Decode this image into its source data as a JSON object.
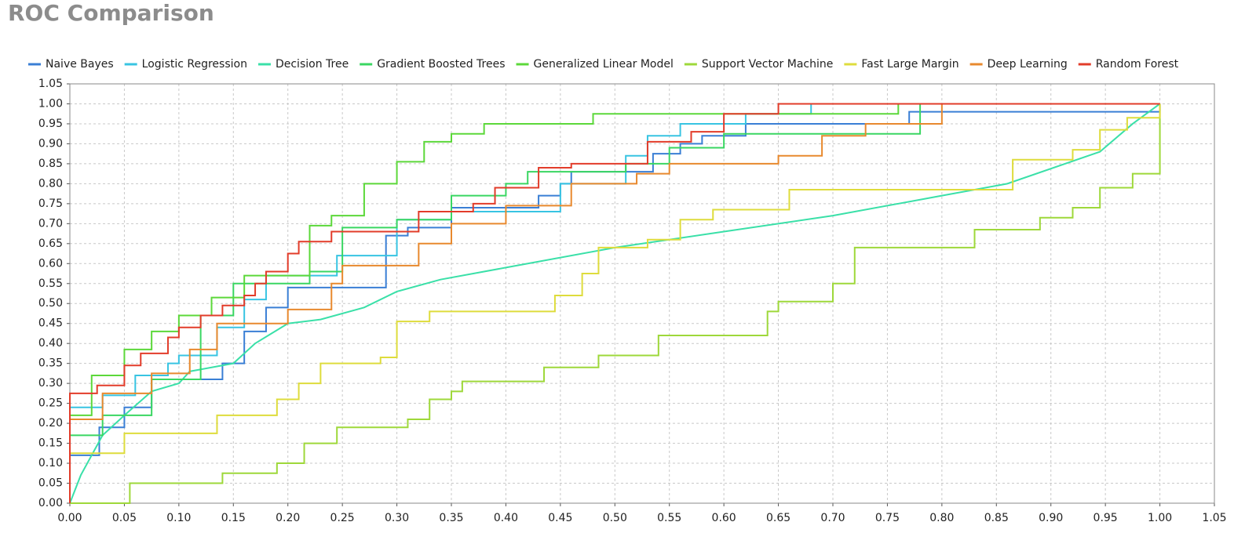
{
  "chart_data": {
    "type": "line",
    "title": "ROC Comparison",
    "xlim": [
      0,
      1.05
    ],
    "ylim": [
      0,
      1.05
    ],
    "grid": true,
    "legend": "top",
    "xticks": [
      {
        "value": 0,
        "label": "0.00"
      },
      {
        "value": 0.05,
        "label": "0.05"
      },
      {
        "value": 0.1,
        "label": "0.10"
      },
      {
        "value": 0.15,
        "label": "0.15"
      },
      {
        "value": 0.2,
        "label": "0.20"
      },
      {
        "value": 0.25,
        "label": "0.25"
      },
      {
        "value": 0.3,
        "label": "0.30"
      },
      {
        "value": 0.35,
        "label": "0.35"
      },
      {
        "value": 0.4,
        "label": "0.40"
      },
      {
        "value": 0.45,
        "label": "0.45"
      },
      {
        "value": 0.5,
        "label": "0.50"
      },
      {
        "value": 0.55,
        "label": "0.55"
      },
      {
        "value": 0.6,
        "label": "0.60"
      },
      {
        "value": 0.65,
        "label": "0.65"
      },
      {
        "value": 0.7,
        "label": "0.70"
      },
      {
        "value": 0.75,
        "label": "0.75"
      },
      {
        "value": 0.8,
        "label": "0.80"
      },
      {
        "value": 0.85,
        "label": "0.85"
      },
      {
        "value": 0.9,
        "label": "0.90"
      },
      {
        "value": 0.95,
        "label": "0.95"
      },
      {
        "value": 1,
        "label": "1.00"
      },
      {
        "value": 1.05,
        "label": "1.05"
      }
    ],
    "yticks": [
      {
        "value": 0,
        "label": "0.00"
      },
      {
        "value": 0.05,
        "label": "0.05"
      },
      {
        "value": 0.1,
        "label": "0.10"
      },
      {
        "value": 0.15,
        "label": "0.15"
      },
      {
        "value": 0.2,
        "label": "0.20"
      },
      {
        "value": 0.25,
        "label": "0.25"
      },
      {
        "value": 0.3,
        "label": "0.30"
      },
      {
        "value": 0.35,
        "label": "0.35"
      },
      {
        "value": 0.4,
        "label": "0.40"
      },
      {
        "value": 0.45,
        "label": "0.45"
      },
      {
        "value": 0.5,
        "label": "0.50"
      },
      {
        "value": 0.55,
        "label": "0.55"
      },
      {
        "value": 0.6,
        "label": "0.60"
      },
      {
        "value": 0.65,
        "label": "0.65"
      },
      {
        "value": 0.7,
        "label": "0.70"
      },
      {
        "value": 0.75,
        "label": "0.75"
      },
      {
        "value": 0.8,
        "label": "0.80"
      },
      {
        "value": 0.85,
        "label": "0.85"
      },
      {
        "value": 0.9,
        "label": "0.90"
      },
      {
        "value": 0.95,
        "label": "0.95"
      },
      {
        "value": 1,
        "label": "1.00"
      },
      {
        "value": 1.05,
        "label": "1.05"
      }
    ],
    "series": [
      {
        "name": "Naive Bayes",
        "color": "#3a7fd5",
        "x": [
          0,
          0,
          0.027,
          0.027,
          0.05,
          0.05,
          0.075,
          0.075,
          0.14,
          0.14,
          0.16,
          0.16,
          0.18,
          0.18,
          0.2,
          0.2,
          0.29,
          0.29,
          0.31,
          0.31,
          0.35,
          0.35,
          0.43,
          0.43,
          0.45,
          0.45,
          0.46,
          0.46,
          0.535,
          0.535,
          0.56,
          0.56,
          0.58,
          0.58,
          0.62,
          0.62,
          0.77,
          0.77,
          1.0,
          1.0
        ],
        "values": [
          0,
          0.12,
          0.12,
          0.19,
          0.19,
          0.24,
          0.24,
          0.31,
          0.31,
          0.35,
          0.35,
          0.43,
          0.43,
          0.49,
          0.49,
          0.54,
          0.54,
          0.67,
          0.67,
          0.69,
          0.69,
          0.74,
          0.74,
          0.77,
          0.77,
          0.8,
          0.8,
          0.83,
          0.83,
          0.875,
          0.875,
          0.9,
          0.9,
          0.92,
          0.92,
          0.95,
          0.95,
          0.98,
          0.98,
          1.0
        ]
      },
      {
        "name": "Logistic Regression",
        "color": "#38c4e2",
        "x": [
          0,
          0,
          0.03,
          0.03,
          0.06,
          0.06,
          0.09,
          0.09,
          0.1,
          0.1,
          0.135,
          0.135,
          0.16,
          0.16,
          0.18,
          0.18,
          0.245,
          0.245,
          0.3,
          0.3,
          0.35,
          0.35,
          0.45,
          0.45,
          0.51,
          0.51,
          0.53,
          0.53,
          0.56,
          0.56,
          0.62,
          0.62,
          0.68,
          0.68,
          1.0
        ],
        "values": [
          0,
          0.24,
          0.24,
          0.27,
          0.27,
          0.32,
          0.32,
          0.35,
          0.35,
          0.37,
          0.37,
          0.44,
          0.44,
          0.51,
          0.51,
          0.57,
          0.57,
          0.62,
          0.62,
          0.71,
          0.71,
          0.73,
          0.73,
          0.8,
          0.8,
          0.87,
          0.87,
          0.92,
          0.92,
          0.95,
          0.95,
          0.975,
          0.975,
          1.0,
          1.0
        ]
      },
      {
        "name": "Decision Tree",
        "color": "#3ae0a8",
        "x": [
          0,
          0.01,
          0.03,
          0.05,
          0.075,
          0.1,
          0.11,
          0.15,
          0.17,
          0.2,
          0.23,
          0.27,
          0.3,
          0.34,
          0.4,
          0.5,
          0.6,
          0.7,
          0.8,
          0.86,
          0.945,
          0.975,
          1.0
        ],
        "values": [
          0,
          0.07,
          0.17,
          0.22,
          0.28,
          0.3,
          0.33,
          0.35,
          0.4,
          0.45,
          0.46,
          0.49,
          0.53,
          0.56,
          0.59,
          0.64,
          0.68,
          0.72,
          0.77,
          0.8,
          0.88,
          0.95,
          1.0
        ]
      },
      {
        "name": "Gradient Boosted Trees",
        "color": "#3ad662",
        "x": [
          0,
          0,
          0.03,
          0.03,
          0.075,
          0.075,
          0.12,
          0.12,
          0.15,
          0.15,
          0.22,
          0.22,
          0.25,
          0.25,
          0.3,
          0.3,
          0.35,
          0.35,
          0.4,
          0.4,
          0.42,
          0.42,
          0.51,
          0.51,
          0.55,
          0.55,
          0.6,
          0.6,
          0.78,
          0.78,
          1.0
        ],
        "values": [
          0,
          0.17,
          0.17,
          0.22,
          0.22,
          0.31,
          0.31,
          0.47,
          0.47,
          0.55,
          0.55,
          0.58,
          0.58,
          0.69,
          0.69,
          0.71,
          0.71,
          0.77,
          0.77,
          0.8,
          0.8,
          0.83,
          0.83,
          0.85,
          0.85,
          0.89,
          0.89,
          0.925,
          0.925,
          1.0,
          1.0
        ]
      },
      {
        "name": "Generalized Linear Model",
        "color": "#5cd83a",
        "x": [
          0,
          0,
          0.02,
          0.02,
          0.05,
          0.05,
          0.075,
          0.075,
          0.1,
          0.1,
          0.13,
          0.13,
          0.16,
          0.16,
          0.22,
          0.22,
          0.24,
          0.24,
          0.27,
          0.27,
          0.3,
          0.3,
          0.325,
          0.325,
          0.35,
          0.35,
          0.38,
          0.38,
          0.48,
          0.48,
          0.76,
          0.76,
          1.0
        ],
        "values": [
          0,
          0.22,
          0.22,
          0.32,
          0.32,
          0.385,
          0.385,
          0.43,
          0.43,
          0.47,
          0.47,
          0.515,
          0.515,
          0.57,
          0.57,
          0.695,
          0.695,
          0.72,
          0.72,
          0.8,
          0.8,
          0.855,
          0.855,
          0.905,
          0.905,
          0.925,
          0.925,
          0.95,
          0.95,
          0.975,
          0.975,
          1.0,
          1.0
        ]
      },
      {
        "name": "Support Vector Machine",
        "color": "#9ed83a",
        "x": [
          0,
          0.055,
          0.055,
          0.14,
          0.14,
          0.19,
          0.19,
          0.215,
          0.215,
          0.245,
          0.245,
          0.31,
          0.31,
          0.33,
          0.33,
          0.35,
          0.35,
          0.36,
          0.36,
          0.435,
          0.435,
          0.485,
          0.485,
          0.54,
          0.54,
          0.64,
          0.64,
          0.65,
          0.65,
          0.7,
          0.7,
          0.72,
          0.72,
          0.83,
          0.83,
          0.89,
          0.89,
          0.92,
          0.92,
          0.945,
          0.945,
          0.975,
          0.975,
          1.0,
          1.0
        ],
        "values": [
          0,
          0,
          0.05,
          0.05,
          0.075,
          0.075,
          0.1,
          0.1,
          0.15,
          0.15,
          0.19,
          0.19,
          0.21,
          0.21,
          0.26,
          0.26,
          0.28,
          0.28,
          0.305,
          0.305,
          0.34,
          0.34,
          0.37,
          0.37,
          0.42,
          0.42,
          0.48,
          0.48,
          0.505,
          0.505,
          0.55,
          0.55,
          0.64,
          0.64,
          0.685,
          0.685,
          0.715,
          0.715,
          0.74,
          0.74,
          0.79,
          0.79,
          0.825,
          0.825,
          1.0
        ]
      },
      {
        "name": "Fast Large Margin",
        "color": "#dedc3c",
        "x": [
          0,
          0,
          0.05,
          0.05,
          0.135,
          0.135,
          0.19,
          0.19,
          0.21,
          0.21,
          0.23,
          0.23,
          0.285,
          0.285,
          0.3,
          0.3,
          0.33,
          0.33,
          0.445,
          0.445,
          0.47,
          0.47,
          0.485,
          0.485,
          0.53,
          0.53,
          0.56,
          0.56,
          0.59,
          0.59,
          0.66,
          0.66,
          0.865,
          0.865,
          0.92,
          0.92,
          0.945,
          0.945,
          0.97,
          0.97,
          1.0,
          1.0
        ],
        "values": [
          0,
          0.125,
          0.125,
          0.175,
          0.175,
          0.22,
          0.22,
          0.26,
          0.26,
          0.3,
          0.3,
          0.35,
          0.35,
          0.365,
          0.365,
          0.455,
          0.455,
          0.48,
          0.48,
          0.52,
          0.52,
          0.575,
          0.575,
          0.64,
          0.64,
          0.66,
          0.66,
          0.71,
          0.71,
          0.735,
          0.735,
          0.785,
          0.785,
          0.86,
          0.86,
          0.885,
          0.885,
          0.935,
          0.935,
          0.965,
          0.965,
          1.0
        ]
      },
      {
        "name": "Deep Learning",
        "color": "#e8892e",
        "x": [
          0,
          0,
          0.03,
          0.03,
          0.075,
          0.075,
          0.11,
          0.11,
          0.135,
          0.135,
          0.2,
          0.2,
          0.24,
          0.24,
          0.25,
          0.25,
          0.32,
          0.32,
          0.35,
          0.35,
          0.4,
          0.4,
          0.46,
          0.46,
          0.52,
          0.52,
          0.55,
          0.55,
          0.65,
          0.65,
          0.69,
          0.69,
          0.73,
          0.73,
          0.8,
          0.8,
          1.0
        ],
        "values": [
          0,
          0.21,
          0.21,
          0.275,
          0.275,
          0.325,
          0.325,
          0.385,
          0.385,
          0.45,
          0.45,
          0.485,
          0.485,
          0.55,
          0.55,
          0.595,
          0.595,
          0.65,
          0.65,
          0.7,
          0.7,
          0.745,
          0.745,
          0.8,
          0.8,
          0.825,
          0.825,
          0.85,
          0.85,
          0.87,
          0.87,
          0.92,
          0.92,
          0.95,
          0.95,
          1.0,
          1.0
        ]
      },
      {
        "name": "Random Forest",
        "color": "#e23c2a",
        "x": [
          0,
          0,
          0.025,
          0.025,
          0.05,
          0.05,
          0.065,
          0.065,
          0.09,
          0.09,
          0.1,
          0.1,
          0.12,
          0.12,
          0.14,
          0.14,
          0.16,
          0.16,
          0.17,
          0.17,
          0.18,
          0.18,
          0.2,
          0.2,
          0.21,
          0.21,
          0.24,
          0.24,
          0.32,
          0.32,
          0.37,
          0.37,
          0.39,
          0.39,
          0.43,
          0.43,
          0.46,
          0.46,
          0.53,
          0.53,
          0.57,
          0.57,
          0.6,
          0.6,
          0.65,
          0.65,
          1.0
        ],
        "values": [
          0,
          0.275,
          0.275,
          0.295,
          0.295,
          0.345,
          0.345,
          0.375,
          0.375,
          0.415,
          0.415,
          0.44,
          0.44,
          0.47,
          0.47,
          0.495,
          0.495,
          0.52,
          0.52,
          0.55,
          0.55,
          0.58,
          0.58,
          0.625,
          0.625,
          0.655,
          0.655,
          0.68,
          0.68,
          0.73,
          0.73,
          0.75,
          0.75,
          0.79,
          0.79,
          0.84,
          0.84,
          0.85,
          0.85,
          0.905,
          0.905,
          0.93,
          0.93,
          0.975,
          0.975,
          1.0,
          1.0
        ]
      }
    ]
  }
}
